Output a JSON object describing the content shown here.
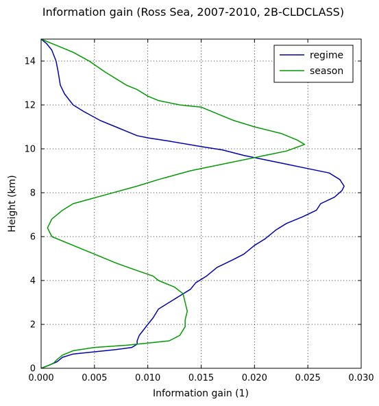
{
  "chart_data": {
    "type": "line",
    "title": "Information gain (Ross Sea, 2007-2010, 2B-CLDCLASS)",
    "xlabel": "Information gain (1)",
    "ylabel": "Height (km)",
    "xlim": [
      0,
      0.03
    ],
    "ylim": [
      0,
      15
    ],
    "x_ticks": [
      0.0,
      0.005,
      0.01,
      0.015,
      0.02,
      0.025,
      0.03
    ],
    "x_tick_labels": [
      "0.000",
      "0.005",
      "0.010",
      "0.015",
      "0.020",
      "0.025",
      "0.030"
    ],
    "y_ticks": [
      0,
      2,
      4,
      6,
      8,
      10,
      12,
      14
    ],
    "y_tick_labels": [
      "0",
      "2",
      "4",
      "6",
      "8",
      "10",
      "12",
      "14"
    ],
    "grid": true,
    "legend_position": "top-right",
    "series": [
      {
        "name": "regime",
        "color": "#0000b3",
        "points": [
          [
            0.0,
            0.0
          ],
          [
            0.0008,
            0.15
          ],
          [
            0.0015,
            0.3
          ],
          [
            0.002,
            0.5
          ],
          [
            0.003,
            0.65
          ],
          [
            0.005,
            0.75
          ],
          [
            0.007,
            0.85
          ],
          [
            0.0085,
            0.95
          ],
          [
            0.009,
            1.1
          ],
          [
            0.009,
            1.25
          ],
          [
            0.0092,
            1.5
          ],
          [
            0.01,
            2.0
          ],
          [
            0.0105,
            2.3
          ],
          [
            0.011,
            2.7
          ],
          [
            0.012,
            3.0
          ],
          [
            0.013,
            3.3
          ],
          [
            0.014,
            3.6
          ],
          [
            0.0145,
            3.9
          ],
          [
            0.0155,
            4.2
          ],
          [
            0.0165,
            4.6
          ],
          [
            0.018,
            4.95
          ],
          [
            0.019,
            5.2
          ],
          [
            0.02,
            5.6
          ],
          [
            0.021,
            5.9
          ],
          [
            0.022,
            6.3
          ],
          [
            0.023,
            6.6
          ],
          [
            0.0245,
            6.9
          ],
          [
            0.0258,
            7.2
          ],
          [
            0.0262,
            7.5
          ],
          [
            0.0275,
            7.8
          ],
          [
            0.0282,
            8.1
          ],
          [
            0.0284,
            8.3
          ],
          [
            0.028,
            8.6
          ],
          [
            0.027,
            8.9
          ],
          [
            0.025,
            9.1
          ],
          [
            0.023,
            9.3
          ],
          [
            0.021,
            9.5
          ],
          [
            0.019,
            9.7
          ],
          [
            0.017,
            9.95
          ],
          [
            0.015,
            10.1
          ],
          [
            0.012,
            10.35
          ],
          [
            0.01,
            10.5
          ],
          [
            0.009,
            10.6
          ],
          [
            0.008,
            10.8
          ],
          [
            0.007,
            11.0
          ],
          [
            0.0055,
            11.3
          ],
          [
            0.004,
            11.7
          ],
          [
            0.003,
            12.0
          ],
          [
            0.0022,
            12.5
          ],
          [
            0.0018,
            12.9
          ],
          [
            0.0016,
            13.5
          ],
          [
            0.0014,
            14.0
          ],
          [
            0.001,
            14.5
          ],
          [
            0.0005,
            14.8
          ],
          [
            0.0,
            15.0
          ]
        ]
      },
      {
        "name": "season",
        "color": "#009900",
        "points": [
          [
            0.0,
            0.0
          ],
          [
            0.0008,
            0.15
          ],
          [
            0.0012,
            0.25
          ],
          [
            0.0015,
            0.4
          ],
          [
            0.002,
            0.6
          ],
          [
            0.003,
            0.8
          ],
          [
            0.005,
            0.95
          ],
          [
            0.008,
            1.05
          ],
          [
            0.01,
            1.15
          ],
          [
            0.012,
            1.25
          ],
          [
            0.013,
            1.5
          ],
          [
            0.0135,
            1.9
          ],
          [
            0.0135,
            2.2
          ],
          [
            0.0137,
            2.6
          ],
          [
            0.0135,
            3.0
          ],
          [
            0.0133,
            3.4
          ],
          [
            0.0125,
            3.7
          ],
          [
            0.011,
            4.0
          ],
          [
            0.0105,
            4.2
          ],
          [
            0.009,
            4.45
          ],
          [
            0.007,
            4.8
          ],
          [
            0.005,
            5.2
          ],
          [
            0.003,
            5.6
          ],
          [
            0.001,
            6.0
          ],
          [
            0.0006,
            6.4
          ],
          [
            0.001,
            6.8
          ],
          [
            0.002,
            7.2
          ],
          [
            0.003,
            7.5
          ],
          [
            0.006,
            7.9
          ],
          [
            0.009,
            8.3
          ],
          [
            0.011,
            8.6
          ],
          [
            0.014,
            9.0
          ],
          [
            0.017,
            9.3
          ],
          [
            0.02,
            9.6
          ],
          [
            0.023,
            9.9
          ],
          [
            0.0247,
            10.2
          ],
          [
            0.024,
            10.4
          ],
          [
            0.0225,
            10.7
          ],
          [
            0.02,
            11.0
          ],
          [
            0.018,
            11.3
          ],
          [
            0.016,
            11.7
          ],
          [
            0.015,
            11.9
          ],
          [
            0.013,
            12.0
          ],
          [
            0.011,
            12.2
          ],
          [
            0.01,
            12.4
          ],
          [
            0.009,
            12.7
          ],
          [
            0.008,
            12.9
          ],
          [
            0.007,
            13.2
          ],
          [
            0.006,
            13.5
          ],
          [
            0.0045,
            14.0
          ],
          [
            0.003,
            14.4
          ],
          [
            0.0015,
            14.7
          ],
          [
            0.0,
            15.0
          ]
        ]
      }
    ]
  }
}
